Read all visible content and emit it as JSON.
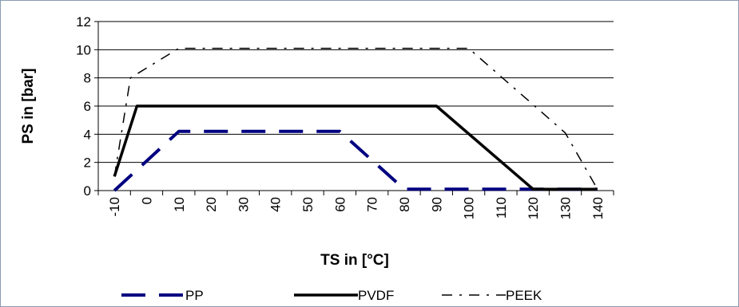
{
  "chart_data": {
    "type": "line",
    "xlabel": "TS in [°C]",
    "ylabel": "PS in [bar]",
    "categories": [
      "-10",
      "0",
      "10",
      "20",
      "30",
      "40",
      "50",
      "60",
      "70",
      "80",
      "90",
      "100",
      "110",
      "120",
      "130",
      "140"
    ],
    "ylim": [
      0,
      12
    ],
    "yticks": [
      "0",
      "2",
      "4",
      "6",
      "8",
      "10",
      "12"
    ],
    "grid": "horizontal",
    "legend_position": "bottom",
    "series": [
      {
        "name": "PP",
        "color": "#000080",
        "style": "long-dash",
        "points": [
          [
            -10,
            0
          ],
          [
            10,
            4.2
          ],
          [
            60,
            4.2
          ],
          [
            80,
            0.1
          ],
          [
            140,
            0.1
          ]
        ]
      },
      {
        "name": "PVDF",
        "color": "#000000",
        "style": "solid",
        "points": [
          [
            -10,
            1
          ],
          [
            -3,
            6
          ],
          [
            90,
            6
          ],
          [
            120,
            0.1
          ],
          [
            140,
            0.1
          ]
        ]
      },
      {
        "name": "PEEK",
        "color": "#000000",
        "style": "dash-dot",
        "points": [
          [
            -10,
            1
          ],
          [
            -5,
            8
          ],
          [
            10,
            10.1
          ],
          [
            100,
            10.1
          ],
          [
            120,
            6.1
          ],
          [
            130,
            4.1
          ],
          [
            140,
            0.1
          ]
        ]
      }
    ]
  }
}
